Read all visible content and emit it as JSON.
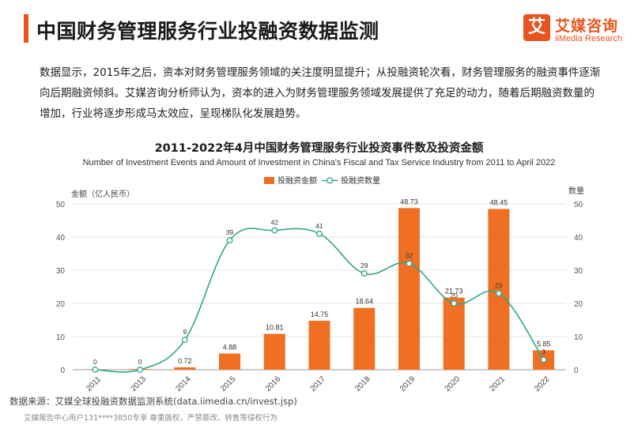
{
  "header": {
    "title": "中国财务管理服务行业投融资数据监测",
    "logo": {
      "badge_char": "艾",
      "name": "艾媒咨询",
      "sub": "iiMedia Research",
      "icon": "iimedia-logo"
    }
  },
  "intro": "数据显示，2015年之后，资本对财务管理服务领域的关注度明显提升；从投融资轮次看，财务管理服务的融资事件逐渐向后期融资倾斜。艾媒咨询分析师认为，资本的进入为财务管理服务领域发展提供了充足的动力，随着后期融资数量的增加，行业将逐步形成马太效应，呈现梯队化发展趋势。",
  "chart_data": {
    "type": "bar",
    "title": "2011-2022年4月中国财务管理服务行业投资事件数及投资金额",
    "subtitle": "Number of Investment Events and Amount of Investment in China's Fiscal and Tax Service Industry from 2011 to April 2022",
    "categories": [
      "2011",
      "2013",
      "2014",
      "2015",
      "2016",
      "2017",
      "2018",
      "2019",
      "2020",
      "2021",
      "2022"
    ],
    "series": [
      {
        "name": "投融资金额",
        "type": "bar",
        "axis": "left",
        "values": [
          0.1,
          0.2,
          0.72,
          4.88,
          10.81,
          14.75,
          18.64,
          48.73,
          21.73,
          48.45,
          5.85
        ],
        "labels": [
          "",
          "",
          "0.72",
          "4.88",
          "10.81",
          "14.75",
          "18.64",
          "48.73",
          "21.73",
          "48.45",
          "5.85"
        ]
      },
      {
        "name": "投融资数量",
        "type": "line",
        "axis": "right",
        "values": [
          0,
          0,
          9,
          39,
          42,
          41,
          29,
          32,
          20,
          23,
          3
        ],
        "labels": [
          "0",
          "0",
          "9",
          "39",
          "42",
          "41",
          "29",
          "32",
          "20",
          "23",
          "3"
        ]
      }
    ],
    "ylabel": "金额（亿人民币）",
    "y2label": "数量",
    "ylim": [
      0,
      50
    ],
    "y2lim": [
      0,
      50
    ],
    "yticks": [
      0,
      10,
      20,
      30,
      40,
      50
    ],
    "legend_position": "top-right",
    "colors": {
      "bar": "#f07023",
      "line": "#2ea58b",
      "grid": "#e6e6e6",
      "axis": "#999999"
    }
  },
  "source": "数据来源：艾媒全球投融资数据监测系统(data.iimedia.cn/invest.jsp)",
  "footer": "艾媒报告中心用户131****3850专享 尊重版权，严禁篡改、转售等侵权行为"
}
